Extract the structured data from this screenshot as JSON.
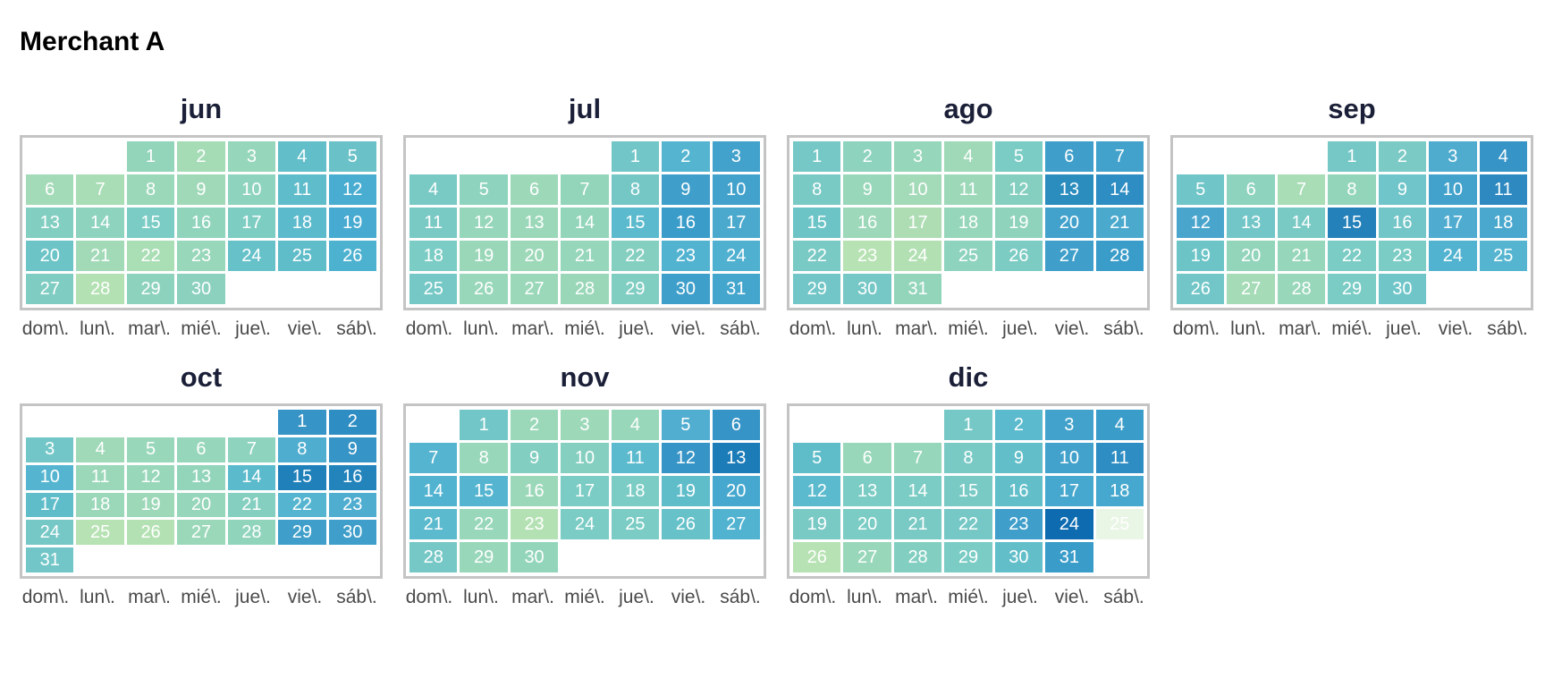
{
  "page_title": "Merchant A",
  "weekday_labels": [
    "dom\\.",
    "lun\\.",
    "mar\\.",
    "mié\\.",
    "jue\\.",
    "vie\\.",
    "sáb\\."
  ],
  "chart_data": {
    "type": "heatmap",
    "subtype": "calendar-heatmap",
    "title": "Merchant A",
    "legend": "none",
    "color_scale_note": "green-to-blue (GnBu-like), light green = low, dark blue = high",
    "weekday_order": [
      "dom",
      "lun",
      "mar",
      "mié",
      "jue",
      "vie",
      "sáb"
    ],
    "months": [
      {
        "label": "jun",
        "first_day_column": 2,
        "num_days": 30,
        "day_colors": [
          "#93d5bb",
          "#a5dcb6",
          "#96d6ba",
          "#62bfca",
          "#6ac2c8",
          "#a3dab8",
          "#a8ddb5",
          "#9bd8b9",
          "#a0d9b8",
          "#8ed3bd",
          "#5fbccb",
          "#48add0",
          "#82cec1",
          "#8ed3bd",
          "#7accc4",
          "#90d4bc",
          "#7ecdc3",
          "#5bbacc",
          "#47aad0",
          "#6cc4c7",
          "#a2dab8",
          "#aadeb5",
          "#98d7ba",
          "#66c1c9",
          "#5fbdca",
          "#4db1d0",
          "#7fcdc2",
          "#b4e1b3",
          "#8dd2bd",
          "#8bd1be"
        ]
      },
      {
        "label": "jul",
        "first_day_column": 4,
        "num_days": 31,
        "day_colors": [
          "#72c6c7",
          "#55b5d1",
          "#42a2cc",
          "#79c9c5",
          "#8ed3bd",
          "#9dd8b9",
          "#93d5bb",
          "#75c7c6",
          "#3f9fca",
          "#42a2cc",
          "#79c9c5",
          "#96d6ba",
          "#9bd8b9",
          "#93d5bb",
          "#5bbacd",
          "#3a9cc9",
          "#4aa9cd",
          "#7accc4",
          "#9ad7b9",
          "#9dd8b9",
          "#96d6ba",
          "#85cfc0",
          "#52b3d1",
          "#4fb0d0",
          "#76c8c6",
          "#98d7ba",
          "#9bd8b9",
          "#9ad7b9",
          "#80cdc2",
          "#3e9fca",
          "#44a6cd"
        ]
      },
      {
        "label": "ago",
        "first_day_column": 0,
        "num_days": 31,
        "day_colors": [
          "#76c8c6",
          "#8ed3bd",
          "#96d6ba",
          "#a0d9b8",
          "#7accc4",
          "#3f9fca",
          "#42a2cc",
          "#79c9c5",
          "#98d7ba",
          "#a3dab8",
          "#9dd8b9",
          "#85cfc0",
          "#2b8cbe",
          "#2e8dc2",
          "#6cc4c7",
          "#9cd8b9",
          "#aeddb4",
          "#96d6ba",
          "#8fd3bd",
          "#42a2cc",
          "#4aa9cd",
          "#79c9c4",
          "#b7e2b3",
          "#b2e0b3",
          "#8ed3bd",
          "#7cccc3",
          "#3f9fca",
          "#3a9cc9",
          "#72c6c7",
          "#76c8c6",
          "#93d5bb"
        ]
      },
      {
        "label": "sep",
        "first_day_column": 3,
        "num_days": 30,
        "day_colors": [
          "#76c8c6",
          "#7bcac5",
          "#4faccf",
          "#3794c6",
          "#6fc5c8",
          "#8ed3bd",
          "#a8ddb5",
          "#93d5bb",
          "#6fc5c9",
          "#42a2cc",
          "#2d89c0",
          "#4aa5cd",
          "#72c6c8",
          "#79c9c5",
          "#2581ba",
          "#72c6c8",
          "#4facd0",
          "#4aa8ce",
          "#6cc4c7",
          "#93d5bb",
          "#96d6ba",
          "#7accc4",
          "#7accc4",
          "#52b3d1",
          "#55b5d1",
          "#72c6c7",
          "#a5dbb7",
          "#98d7ba",
          "#7accc4",
          "#6fc5c8"
        ]
      },
      {
        "label": "oct",
        "first_day_column": 5,
        "num_days": 31,
        "day_colors": [
          "#3794c6",
          "#2e8dc2",
          "#72c6c7",
          "#a0d9b8",
          "#98d7ba",
          "#96d6ba",
          "#8ed3bd",
          "#4fadd0",
          "#3794c6",
          "#55b5d0",
          "#9bd8b9",
          "#98d7ba",
          "#93d5bb",
          "#5bbacc",
          "#2080ba",
          "#2384bc",
          "#5fbdca",
          "#9bd8b9",
          "#9dd8b9",
          "#96d6ba",
          "#85cfc0",
          "#55b5d0",
          "#4fadd0",
          "#76c8c6",
          "#b7e2b3",
          "#b4e1b3",
          "#9bd8b9",
          "#90d4bc",
          "#3f9fca",
          "#3f9fca",
          "#72c6c7"
        ]
      },
      {
        "label": "nov",
        "first_day_column": 1,
        "num_days": 30,
        "day_colors": [
          "#72c6c7",
          "#9bd8b9",
          "#9dd8b9",
          "#98d7ba",
          "#52aed0",
          "#3794c6",
          "#55b5d0",
          "#98d7ba",
          "#82cec1",
          "#85cfc0",
          "#5bbacd",
          "#3794c6",
          "#1c7cb8",
          "#52b3d1",
          "#55b5d0",
          "#9bd8b9",
          "#7accc4",
          "#7accc4",
          "#5fbdca",
          "#46a8ce",
          "#5bbacd",
          "#98d7ba",
          "#b4e1b3",
          "#7accc4",
          "#7accc4",
          "#66c1c9",
          "#52b3d1",
          "#76c8c6",
          "#98d7ba",
          "#93d5bb"
        ]
      },
      {
        "label": "dic",
        "first_day_column": 3,
        "num_days": 31,
        "day_colors": [
          "#76c8c6",
          "#5bbacd",
          "#42a2cc",
          "#3a9cc9",
          "#5fbdca",
          "#98d7ba",
          "#96d6ba",
          "#79c9c5",
          "#62bfca",
          "#42a2cc",
          "#2e8dc2",
          "#5bbacd",
          "#7accc4",
          "#7accc4",
          "#79c9c5",
          "#62bfca",
          "#46a8ce",
          "#46a8ce",
          "#79c9c5",
          "#7accc4",
          "#79c9c5",
          "#76c8c6",
          "#3f9fca",
          "#0f6bb0",
          "#e9f5e5",
          "#b7e2b3",
          "#98d7ba",
          "#82cec1",
          "#7accc4",
          "#62bfca",
          "#3a9cc9"
        ]
      }
    ]
  }
}
